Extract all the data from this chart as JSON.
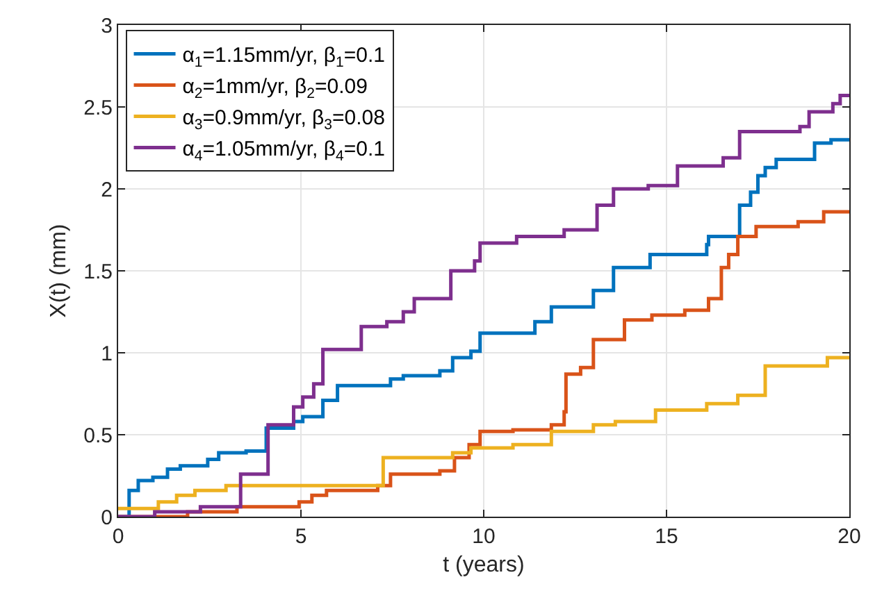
{
  "chart_data": {
    "type": "step",
    "xlabel": "t (years)",
    "ylabel": "X(t) (mm)",
    "xlim": [
      0,
      20
    ],
    "xticks": [
      0,
      5,
      10,
      15,
      20
    ],
    "ylim": [
      0,
      3
    ],
    "yticks": [
      0,
      0.5,
      1,
      1.5,
      2,
      2.5,
      3
    ],
    "grid": true,
    "legend": "top left",
    "line_style": "solid",
    "marker": "none",
    "series": [
      {
        "name": "α$_{1}$=1.15mm/yr, β$_{1}$=0.1",
        "color": "#0072bd",
        "x": [
          0,
          0.3,
          0.55,
          0.95,
          1.35,
          1.7,
          2.45,
          2.75,
          3.5,
          4.05,
          4.8,
          5.05,
          5.6,
          6.0,
          7.45,
          7.8,
          8.8,
          9.15,
          9.65,
          9.9,
          11.4,
          11.85,
          13.0,
          13.55,
          14.55,
          16.1,
          16.15,
          17.0,
          17.3,
          17.5,
          17.7,
          18.0,
          19.05,
          19.5,
          20
        ],
        "values": [
          0,
          0.16,
          0.22,
          0.24,
          0.29,
          0.31,
          0.35,
          0.39,
          0.4,
          0.54,
          0.58,
          0.61,
          0.71,
          0.8,
          0.84,
          0.86,
          0.89,
          0.97,
          1.01,
          1.12,
          1.19,
          1.28,
          1.38,
          1.52,
          1.6,
          1.66,
          1.71,
          1.9,
          1.98,
          2.08,
          2.13,
          2.18,
          2.28,
          2.3,
          2.3
        ]
      },
      {
        "name": "α$_{2}$=1mm/yr, β$_{2}$=0.09",
        "color": "#d95319",
        "x": [
          0,
          1.9,
          3.25,
          4.95,
          5.3,
          5.7,
          7.1,
          7.45,
          8.8,
          9.2,
          9.6,
          9.9,
          10.8,
          11.85,
          12.2,
          12.25,
          12.65,
          13.0,
          13.85,
          14.6,
          15.5,
          16.15,
          16.5,
          16.7,
          16.95,
          17.45,
          18.6,
          19.3,
          20
        ],
        "values": [
          0,
          0.03,
          0.06,
          0.09,
          0.13,
          0.16,
          0.19,
          0.26,
          0.28,
          0.36,
          0.44,
          0.52,
          0.53,
          0.56,
          0.64,
          0.87,
          0.91,
          1.08,
          1.2,
          1.23,
          1.26,
          1.33,
          1.52,
          1.6,
          1.71,
          1.77,
          1.8,
          1.86,
          1.86
        ]
      },
      {
        "name": "α$_{3}$=0.9mm/yr, β$_{3}$=0.08",
        "color": "#edb120",
        "x": [
          0,
          1.1,
          1.6,
          2.1,
          2.95,
          7.25,
          9.15,
          9.65,
          10.8,
          11.85,
          13.0,
          13.6,
          14.7,
          16.1,
          16.95,
          17.7,
          19.4,
          20
        ],
        "values": [
          0.05,
          0.09,
          0.13,
          0.16,
          0.19,
          0.36,
          0.39,
          0.42,
          0.44,
          0.52,
          0.56,
          0.58,
          0.65,
          0.69,
          0.74,
          0.92,
          0.97,
          0.97
        ]
      },
      {
        "name": "α$_{4}$=1.05mm/yr, β$_{4}$=0.1",
        "color": "#7e2f8e",
        "x": [
          0,
          1.0,
          2.25,
          3.35,
          4.1,
          4.8,
          5.05,
          5.35,
          5.6,
          6.65,
          7.35,
          7.8,
          8.1,
          9.1,
          9.75,
          9.9,
          10.9,
          12.2,
          13.1,
          13.55,
          14.5,
          15.3,
          16.55,
          17.0,
          18.65,
          18.9,
          19.55,
          19.75,
          20
        ],
        "values": [
          0,
          0.03,
          0.06,
          0.26,
          0.56,
          0.67,
          0.73,
          0.81,
          1.02,
          1.16,
          1.19,
          1.25,
          1.33,
          1.5,
          1.56,
          1.67,
          1.71,
          1.75,
          1.9,
          2.0,
          2.02,
          2.14,
          2.19,
          2.35,
          2.38,
          2.47,
          2.52,
          2.57,
          2.57
        ]
      }
    ]
  }
}
